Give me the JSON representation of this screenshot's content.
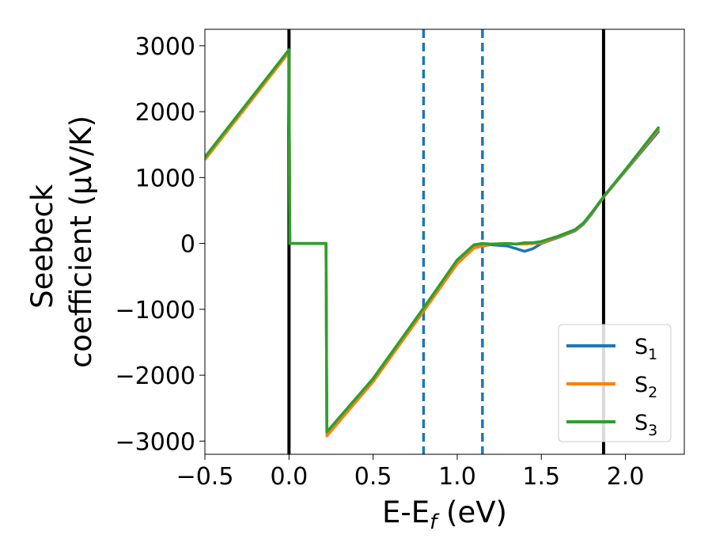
{
  "chart_data": {
    "type": "line",
    "xlabel": "E-E",
    "xlabel_sub": "f",
    "xlabel_unit": " (eV)",
    "ylabel_line1": "Seebeck",
    "ylabel_line2": "coefficient  (μV/K)",
    "xlim": [
      -0.5,
      2.35
    ],
    "ylim": [
      -3200,
      3250
    ],
    "xticks": [
      -0.5,
      0.0,
      0.5,
      1.0,
      1.5,
      2.0
    ],
    "xtick_labels": [
      "−0.5",
      "0.0",
      "0.5",
      "1.0",
      "1.5",
      "2.0"
    ],
    "yticks": [
      -3000,
      -2000,
      -1000,
      0,
      1000,
      2000,
      3000
    ],
    "ytick_labels": [
      "−3000",
      "−2000",
      "−1000",
      "0",
      "1000",
      "2000",
      "3000"
    ],
    "vlines_solid": [
      0.0,
      1.87
    ],
    "vlines_dashed": [
      0.8,
      1.15
    ],
    "grid": false,
    "legend_position": "lower-right",
    "series": [
      {
        "name": "S",
        "sub": "1",
        "color": "#1f77b4",
        "points": [
          [
            -0.5,
            1280
          ],
          [
            0.0,
            2910
          ],
          [
            0.005,
            0
          ],
          [
            0.22,
            0
          ],
          [
            0.225,
            -2900
          ],
          [
            0.5,
            -2080
          ],
          [
            0.8,
            -1020
          ],
          [
            1.0,
            -300
          ],
          [
            1.1,
            -60
          ],
          [
            1.2,
            -20
          ],
          [
            1.3,
            -40
          ],
          [
            1.35,
            -80
          ],
          [
            1.4,
            -120
          ],
          [
            1.45,
            -80
          ],
          [
            1.5,
            0
          ],
          [
            1.6,
            90
          ],
          [
            1.7,
            190
          ],
          [
            1.75,
            290
          ],
          [
            1.8,
            450
          ],
          [
            1.87,
            700
          ],
          [
            2.0,
            1100
          ],
          [
            2.2,
            1710
          ]
        ]
      },
      {
        "name": "S",
        "sub": "2",
        "color": "#ff7f0e",
        "points": [
          [
            -0.5,
            1270
          ],
          [
            0.0,
            2900
          ],
          [
            0.005,
            0
          ],
          [
            0.22,
            0
          ],
          [
            0.225,
            -2920
          ],
          [
            0.5,
            -2100
          ],
          [
            0.8,
            -1030
          ],
          [
            1.0,
            -310
          ],
          [
            1.1,
            -70
          ],
          [
            1.2,
            -10
          ],
          [
            1.3,
            0
          ],
          [
            1.35,
            -10
          ],
          [
            1.4,
            -10
          ],
          [
            1.45,
            0
          ],
          [
            1.5,
            10
          ],
          [
            1.6,
            100
          ],
          [
            1.7,
            200
          ],
          [
            1.75,
            300
          ],
          [
            1.8,
            460
          ],
          [
            1.87,
            700
          ],
          [
            2.0,
            1110
          ],
          [
            2.2,
            1740
          ]
        ]
      },
      {
        "name": "S",
        "sub": "3",
        "color": "#2ca02c",
        "points": [
          [
            -0.5,
            1310
          ],
          [
            0.0,
            2940
          ],
          [
            0.005,
            0
          ],
          [
            0.22,
            0
          ],
          [
            0.225,
            -2860
          ],
          [
            0.5,
            -2050
          ],
          [
            0.8,
            -980
          ],
          [
            1.0,
            -250
          ],
          [
            1.1,
            -20
          ],
          [
            1.15,
            0
          ],
          [
            1.2,
            -10
          ],
          [
            1.3,
            0
          ],
          [
            1.35,
            -10
          ],
          [
            1.4,
            10
          ],
          [
            1.45,
            10
          ],
          [
            1.5,
            30
          ],
          [
            1.6,
            110
          ],
          [
            1.7,
            210
          ],
          [
            1.75,
            310
          ],
          [
            1.8,
            470
          ],
          [
            1.87,
            710
          ],
          [
            2.0,
            1120
          ],
          [
            2.2,
            1770
          ]
        ]
      }
    ]
  }
}
